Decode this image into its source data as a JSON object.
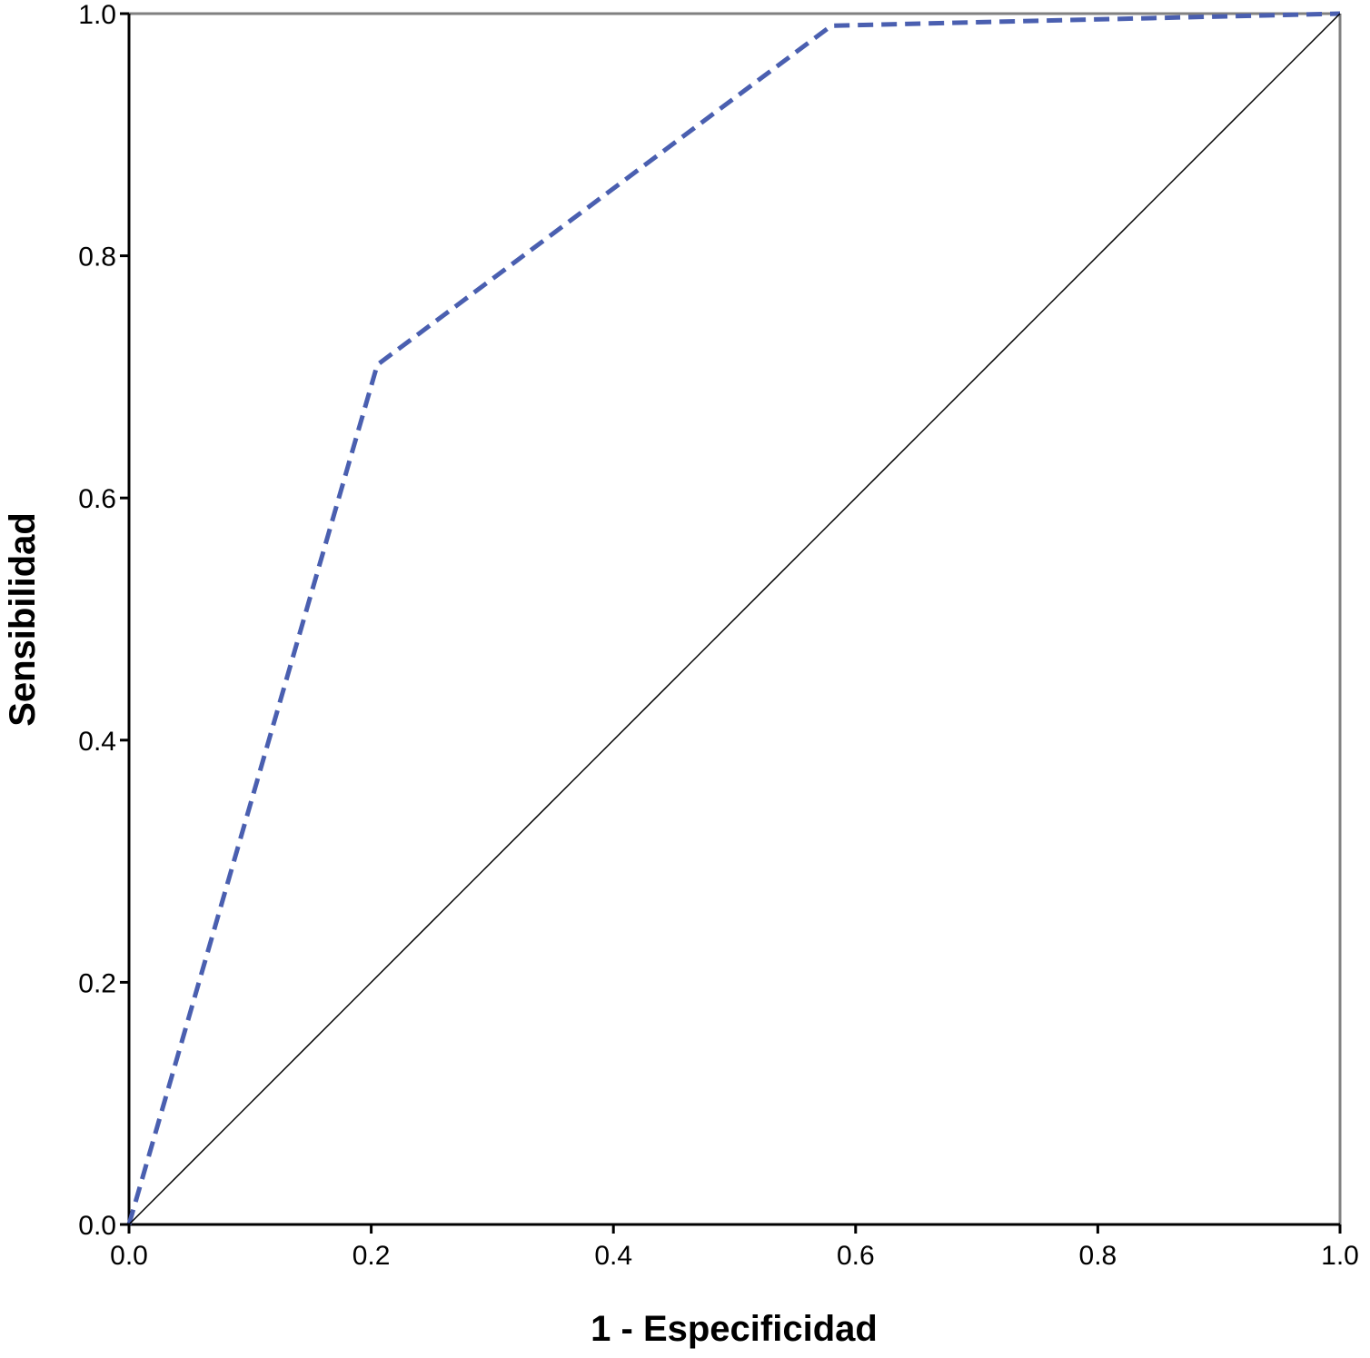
{
  "chart_data": {
    "type": "line",
    "title": "",
    "xlabel": "1 - Especificidad",
    "ylabel": "Sensibilidad",
    "xlim": [
      0.0,
      1.0
    ],
    "ylim": [
      0.0,
      1.0
    ],
    "x_ticks": [
      "0.0",
      "0.2",
      "0.4",
      "0.6",
      "0.8",
      "1.0"
    ],
    "y_ticks": [
      "0.0",
      "0.2",
      "0.4",
      "0.6",
      "0.8",
      "1.0"
    ],
    "grid": false,
    "legend": "none",
    "series": [
      {
        "style": "dashed",
        "color": "#4a5fb0",
        "x": [
          0.0,
          0.205,
          0.58,
          1.0
        ],
        "y": [
          0.0,
          0.71,
          0.99,
          1.0
        ]
      },
      {
        "style": "solid",
        "color": "#000000",
        "x": [
          0.0,
          1.0
        ],
        "y": [
          0.0,
          1.0
        ]
      }
    ]
  }
}
